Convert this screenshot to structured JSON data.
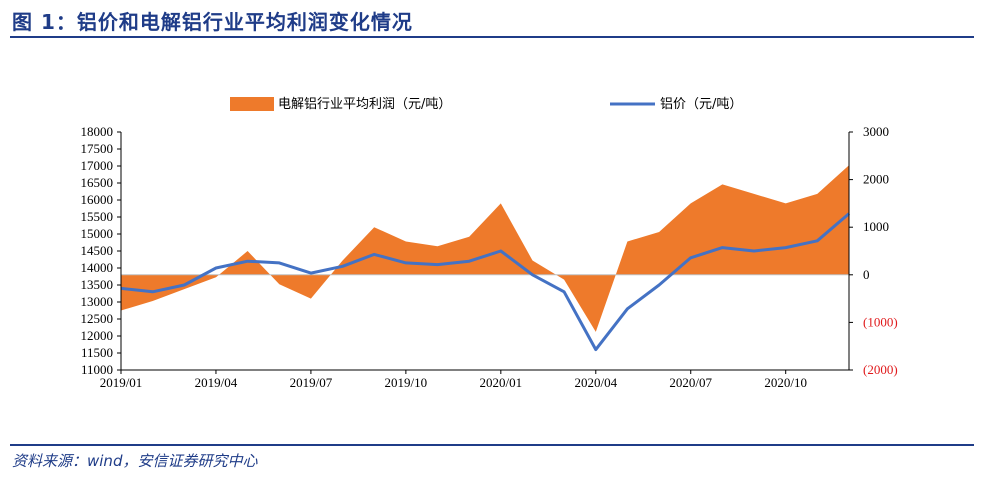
{
  "figure": {
    "title": "图 1：铝价和电解铝行业平均利润变化情况",
    "source": "资料来源：wind，安信证券研究中心"
  },
  "colors": {
    "area": "#ee7a2b",
    "line": "#4472c4",
    "rule": "#1f3c88",
    "negative_tick": "#e0191b"
  },
  "chart_data": {
    "type": "area",
    "legend_position": "top",
    "grid": false,
    "series": [
      {
        "name": "电解铝行业平均利润（元/吨）",
        "type": "area",
        "axis": "right",
        "x": [
          "2019/01",
          "2019/02",
          "2019/03",
          "2019/04",
          "2019/05",
          "2019/06",
          "2019/07",
          "2019/08",
          "2019/09",
          "2019/10",
          "2019/11",
          "2019/12",
          "2020/01",
          "2020/02",
          "2020/03",
          "2020/04",
          "2020/05",
          "2020/06",
          "2020/07",
          "2020/08",
          "2020/09",
          "2020/10",
          "2020/11",
          "2020/12"
        ],
        "values": [
          -750,
          -550,
          -300,
          -50,
          500,
          -200,
          -500,
          300,
          1000,
          700,
          600,
          800,
          1500,
          300,
          -100,
          -1200,
          700,
          900,
          1500,
          1900,
          1700,
          1500,
          1700,
          2300
        ]
      },
      {
        "name": "铝价（元/吨）",
        "type": "line",
        "axis": "left",
        "x": [
          "2019/01",
          "2019/02",
          "2019/03",
          "2019/04",
          "2019/05",
          "2019/06",
          "2019/07",
          "2019/08",
          "2019/09",
          "2019/10",
          "2019/11",
          "2019/12",
          "2020/01",
          "2020/02",
          "2020/03",
          "2020/04",
          "2020/05",
          "2020/06",
          "2020/07",
          "2020/08",
          "2020/09",
          "2020/10",
          "2020/11",
          "2020/12"
        ],
        "values": [
          13400,
          13300,
          13500,
          14000,
          14200,
          14150,
          13850,
          14050,
          14400,
          14150,
          14100,
          14200,
          14500,
          13800,
          13300,
          11600,
          12800,
          13500,
          14300,
          14600,
          14500,
          14600,
          14800,
          15600
        ]
      }
    ],
    "y_left": {
      "ylim": [
        11000,
        18000
      ],
      "ticks": [
        "18000",
        "17500",
        "17000",
        "16500",
        "16000",
        "15500",
        "15000",
        "14500",
        "14000",
        "13500",
        "13000",
        "12500",
        "12000",
        "11500",
        "11000"
      ]
    },
    "y_right": {
      "ylim": [
        -2000,
        3000
      ],
      "ticks": [
        "3000",
        "2000",
        "1000",
        "0",
        "(1000)",
        "(2000)"
      ]
    },
    "x_ticks": [
      "2019/01",
      "2019/04",
      "2019/07",
      "2019/10",
      "2020/01",
      "2020/04",
      "2020/07",
      "2020/10"
    ]
  }
}
